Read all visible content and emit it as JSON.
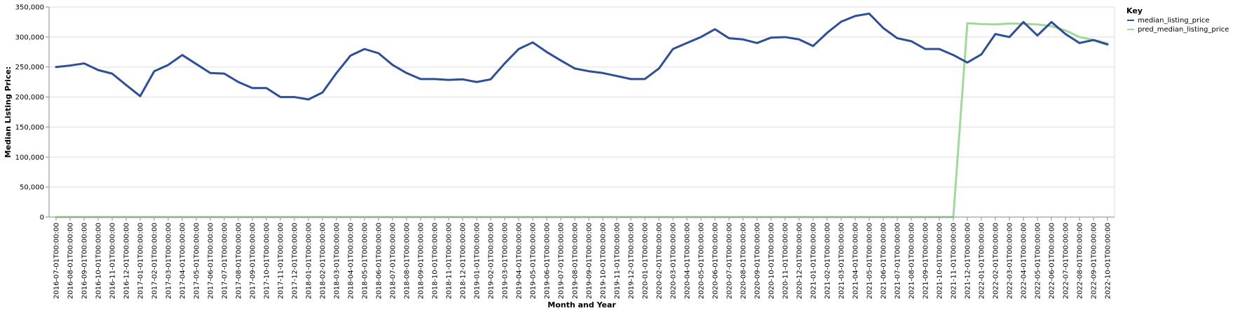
{
  "chart_data": {
    "type": "line",
    "xlabel": "Month and Year",
    "ylabel": "Median Listing Price:",
    "ylim": [
      0,
      350000
    ],
    "yticks": [
      0,
      50000,
      100000,
      150000,
      200000,
      250000,
      300000,
      350000
    ],
    "ytick_labels": [
      "0",
      "50,000",
      "100,000",
      "150,000",
      "200,000",
      "250,000",
      "300,000",
      "350,000"
    ],
    "grid": true,
    "legend": {
      "title": "Key",
      "position": "top-right"
    },
    "x": [
      "2016-07-01T00:00:00",
      "2016-08-01T00:00:00",
      "2016-09-01T00:00:00",
      "2016-10-01T00:00:00",
      "2016-11-01T00:00:00",
      "2016-12-01T00:00:00",
      "2017-01-01T00:00:00",
      "2017-02-01T00:00:00",
      "2017-03-01T00:00:00",
      "2017-04-01T00:00:00",
      "2017-05-01T00:00:00",
      "2017-06-01T00:00:00",
      "2017-07-01T00:00:00",
      "2017-08-01T00:00:00",
      "2017-09-01T00:00:00",
      "2017-10-01T00:00:00",
      "2017-11-01T00:00:00",
      "2017-12-01T00:00:00",
      "2018-01-01T00:00:00",
      "2018-02-01T00:00:00",
      "2018-03-01T00:00:00",
      "2018-04-01T00:00:00",
      "2018-05-01T00:00:00",
      "2018-06-01T00:00:00",
      "2018-07-01T00:00:00",
      "2018-08-01T00:00:00",
      "2018-09-01T00:00:00",
      "2018-10-01T00:00:00",
      "2018-11-01T00:00:00",
      "2018-12-01T00:00:00",
      "2019-01-01T00:00:00",
      "2019-02-01T00:00:00",
      "2019-03-01T00:00:00",
      "2019-04-01T00:00:00",
      "2019-05-01T00:00:00",
      "2019-06-01T00:00:00",
      "2019-07-01T00:00:00",
      "2019-08-01T00:00:00",
      "2019-09-01T00:00:00",
      "2019-10-01T00:00:00",
      "2019-11-01T00:00:00",
      "2019-12-01T00:00:00",
      "2020-01-01T00:00:00",
      "2020-02-01T00:00:00",
      "2020-03-01T00:00:00",
      "2020-04-01T00:00:00",
      "2020-05-01T00:00:00",
      "2020-06-01T00:00:00",
      "2020-07-01T00:00:00",
      "2020-08-01T00:00:00",
      "2020-09-01T00:00:00",
      "2020-10-01T00:00:00",
      "2020-11-01T00:00:00",
      "2020-12-01T00:00:00",
      "2021-01-01T00:00:00",
      "2021-02-01T00:00:00",
      "2021-03-01T00:00:00",
      "2021-04-01T00:00:00",
      "2021-05-01T00:00:00",
      "2021-06-01T00:00:00",
      "2021-07-01T00:00:00",
      "2021-08-01T00:00:00",
      "2021-09-01T00:00:00",
      "2021-10-01T00:00:00",
      "2021-11-01T00:00:00",
      "2021-12-01T00:00:00",
      "2022-01-01T00:00:00",
      "2022-02-01T00:00:00",
      "2022-03-01T00:00:00",
      "2022-04-01T00:00:00",
      "2022-05-01T00:00:00",
      "2022-06-01T00:00:00",
      "2022-07-01T00:00:00",
      "2022-08-01T00:00:00",
      "2022-09-01T00:00:00",
      "2022-10-01T00:00:00"
    ],
    "series": [
      {
        "name": "median_listing_price",
        "color": "#2c4f95",
        "values": [
          250000,
          252500,
          256000,
          245000,
          239000,
          220000,
          201500,
          243000,
          253500,
          270000,
          255000,
          240000,
          239000,
          225000,
          215000,
          215000,
          200000,
          200000,
          196000,
          207500,
          240000,
          269000,
          280000,
          273000,
          253500,
          240000,
          230000,
          230000,
          228500,
          229500,
          225000,
          229500,
          256000,
          280000,
          291000,
          275000,
          261000,
          247500,
          243000,
          240000,
          235000,
          230000,
          230000,
          247500,
          280000,
          290000,
          300000,
          313000,
          298000,
          296000,
          290000,
          299000,
          299900,
          296000,
          285000,
          307000,
          325500,
          335000,
          339000,
          315000,
          298000,
          293000,
          280000,
          280000,
          270000,
          257500,
          271000,
          305000,
          299900,
          325000,
          302500,
          325000,
          305000,
          290000,
          295000,
          287500
        ]
      },
      {
        "name": "pred_median_listing_price",
        "color": "#a1d99b",
        "values": [
          0,
          0,
          0,
          0,
          0,
          0,
          0,
          0,
          0,
          0,
          0,
          0,
          0,
          0,
          0,
          0,
          0,
          0,
          0,
          0,
          0,
          0,
          0,
          0,
          0,
          0,
          0,
          0,
          0,
          0,
          0,
          0,
          0,
          0,
          0,
          0,
          0,
          0,
          0,
          0,
          0,
          0,
          0,
          0,
          0,
          0,
          0,
          0,
          0,
          0,
          0,
          0,
          0,
          0,
          0,
          0,
          0,
          0,
          0,
          0,
          0,
          0,
          0,
          0,
          0,
          323000,
          321500,
          321000,
          322500,
          322000,
          321000,
          318000,
          311000,
          300000,
          295000,
          289500
        ]
      }
    ]
  }
}
